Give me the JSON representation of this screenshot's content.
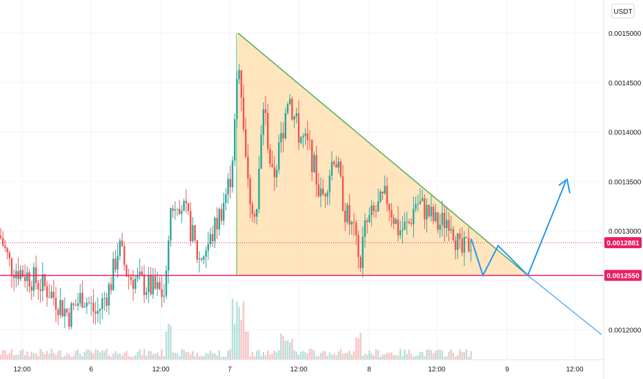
{
  "chart_data": {
    "type": "candlestick",
    "currency": "USDT",
    "y_ticks": [
      "0.0015000",
      "0.0014500",
      "0.0014000",
      "0.0013500",
      "0.0013000",
      "0.0012000"
    ],
    "y_tick_values": [
      0.0015,
      0.00145,
      0.0014,
      0.00135,
      0.0013,
      0.0012
    ],
    "x_ticks": [
      "12:00",
      "6",
      "12:00",
      "7",
      "12:00",
      "8",
      "12:00",
      "9",
      "12:00"
    ],
    "price_tags": [
      {
        "label": "0.0012881",
        "value": 0.0012881,
        "color": "#e91e63"
      },
      {
        "label": "0.0012550",
        "value": 0.001255,
        "color": "#e91e63"
      }
    ],
    "support_line": {
      "value": 0.001255,
      "color": "#e91e63"
    },
    "current_price_line": {
      "value": 0.0012881,
      "color": "#e91e63"
    },
    "triangle": {
      "top": 0.0015,
      "base": 0.001255,
      "fill": "#ffe0b2",
      "edge": "#4caf50"
    },
    "ylim": [
      0.00114,
      0.00153
    ],
    "colors": {
      "up": "#26a69a",
      "down": "#ef5350",
      "projection": "#2196f3",
      "grid": "#f0f3fa"
    }
  }
}
